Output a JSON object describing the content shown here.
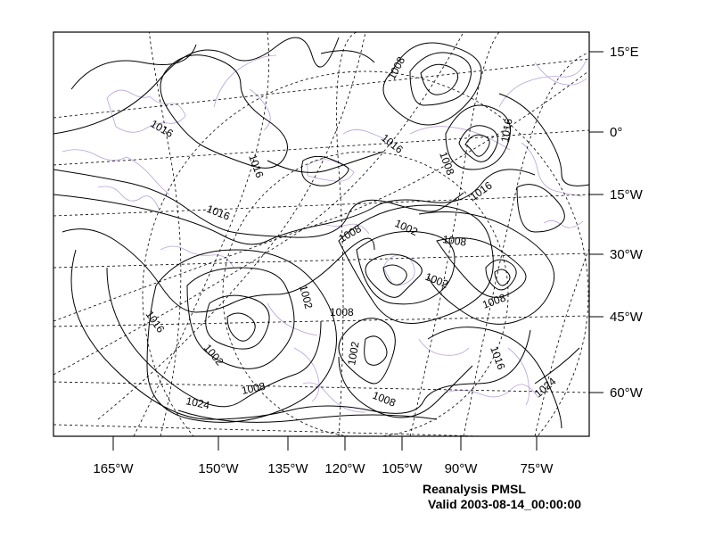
{
  "figure": {
    "type": "map",
    "description_title": "Reanalysis PMSL",
    "valid_time": "Valid 2003-08-14_00:00:00"
  },
  "bottom_axis_labels": [
    "165°W",
    "150°W",
    "135°W",
    "120°W",
    "105°W",
    "90°W",
    "75°W"
  ],
  "right_axis_labels": [
    "15°E",
    "0°",
    "15°W",
    "30°W",
    "45°W",
    "60°W"
  ],
  "contour_labels": [
    "1008",
    "1016",
    "1016",
    "1016",
    "1016",
    "1008",
    "1016",
    "1016",
    "1008",
    "1002",
    "1008",
    "1002",
    "1002",
    "1008",
    "1008",
    "1016",
    "1002",
    "1008",
    "1024",
    "1002",
    "1008",
    "1016",
    "1024"
  ],
  "colors": {
    "contour": "#000000",
    "coastline": "#b9a3d6",
    "grid": "#000000",
    "background": "#ffffff"
  }
}
